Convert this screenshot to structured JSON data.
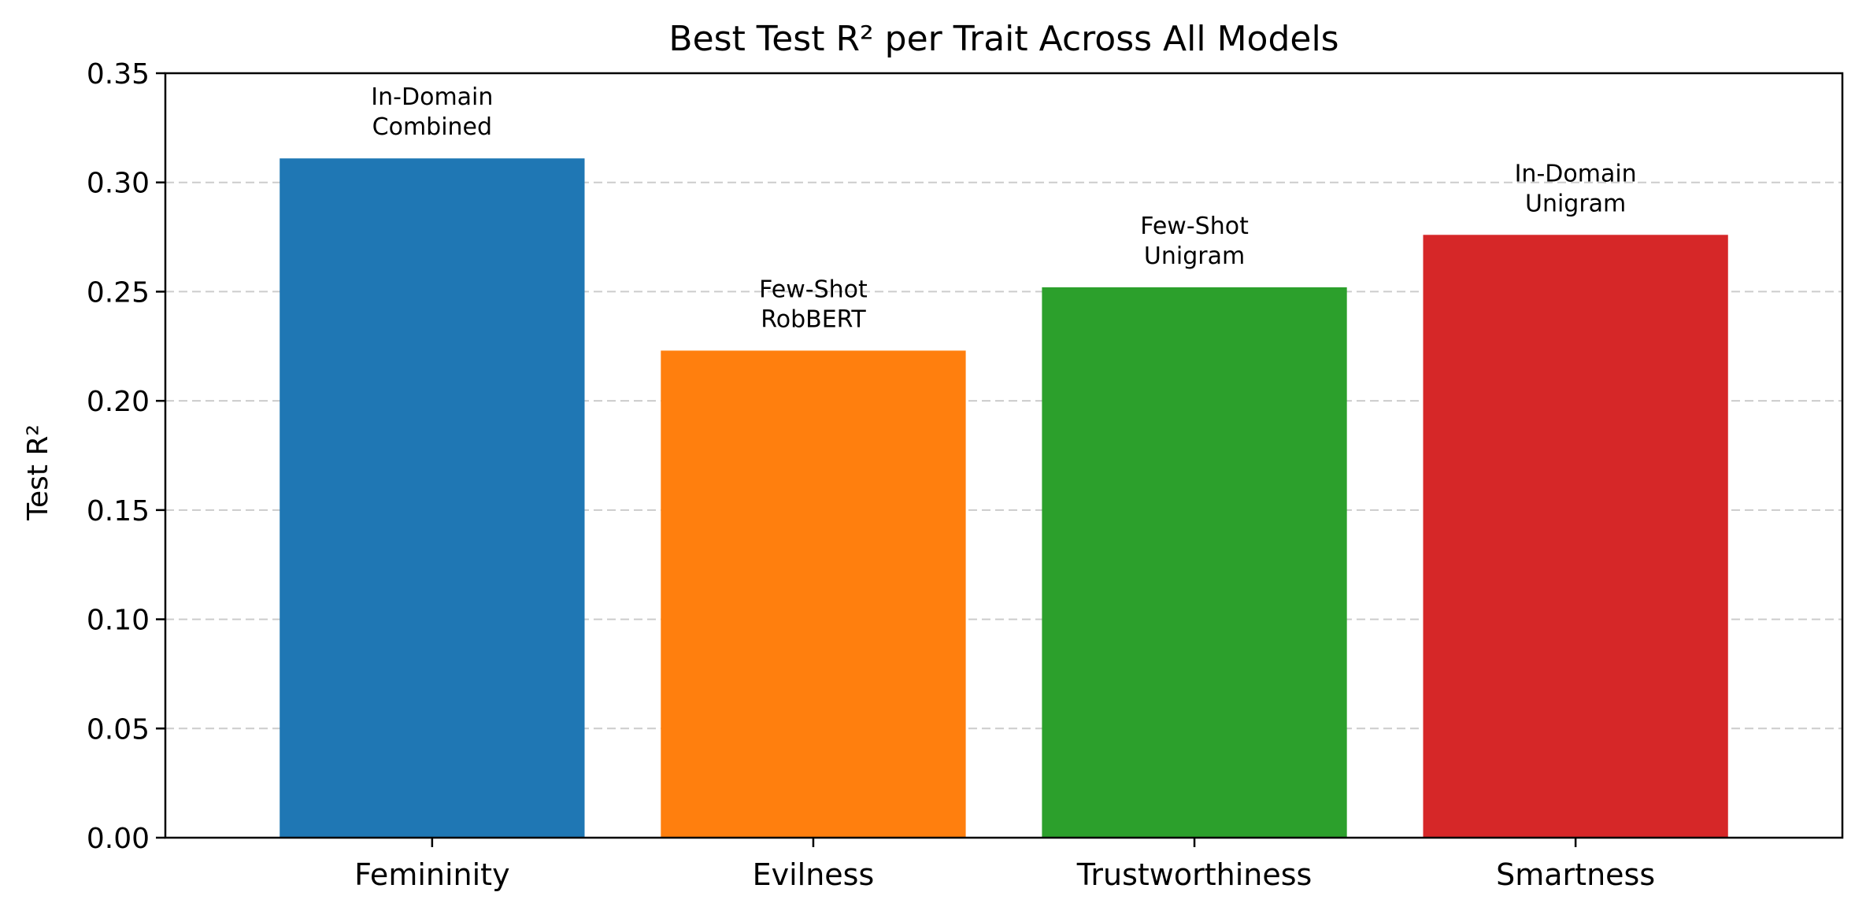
{
  "chart_data": {
    "type": "bar",
    "title": "Best Test R² per Trait Across All Models",
    "xlabel": "",
    "ylabel": "Test R²",
    "ylim": [
      0,
      0.35
    ],
    "yticks": [
      "0.00",
      "0.05",
      "0.10",
      "0.15",
      "0.20",
      "0.25",
      "0.30",
      "0.35"
    ],
    "categories": [
      "Femininity",
      "Evilness",
      "Trustworthiness",
      "Smartness"
    ],
    "values": [
      0.311,
      0.223,
      0.252,
      0.276
    ],
    "bar_labels": [
      [
        "In-Domain",
        "Combined"
      ],
      [
        "Few-Shot",
        "RobBERT"
      ],
      [
        "Few-Shot",
        "Unigram"
      ],
      [
        "In-Domain",
        "Unigram"
      ]
    ],
    "colors": [
      "#1f77b4",
      "#ff7f0e",
      "#2ca02c",
      "#d62728"
    ],
    "grid": "y-dashed",
    "legend": "none"
  }
}
